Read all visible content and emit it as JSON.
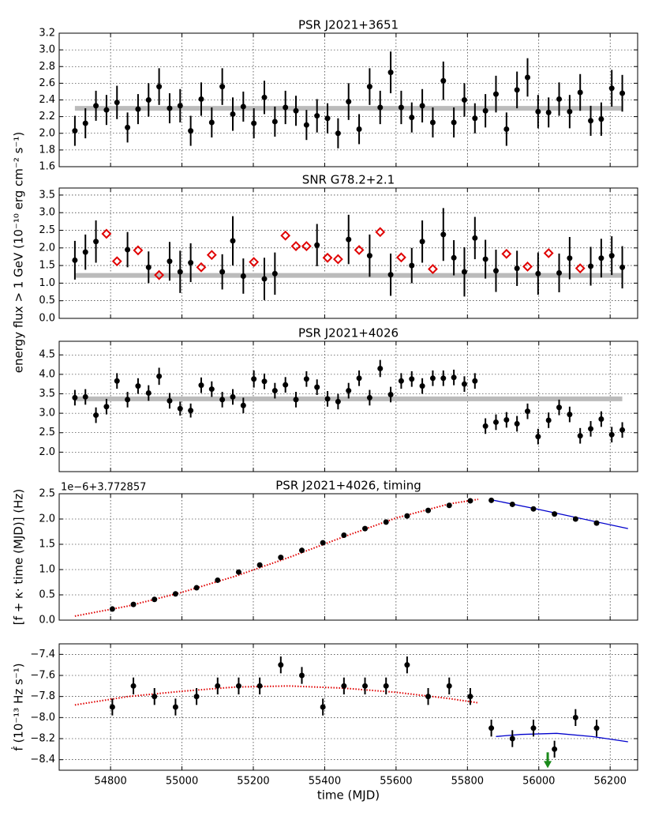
{
  "chart_data": [
    {
      "type": "errorbar",
      "title": "PSR J2021+3651",
      "xlim": [
        54656,
        56277
      ],
      "xticks": [
        54800,
        55000,
        55200,
        55400,
        55600,
        55800,
        56000,
        56200
      ],
      "ylim": [
        1.6,
        3.2
      ],
      "yticks": [
        1.6,
        1.8,
        {
          "value": 2,
          "label": "2.0"
        },
        2.2,
        2.4,
        2.6,
        2.8,
        {
          "value": 3,
          "label": "3.0"
        },
        3.2
      ],
      "grid": true,
      "series": [
        {
          "type": "band",
          "color": "#bbbbbb",
          "x": [
            54700,
            56234
          ],
          "value": 2.3
        },
        {
          "type": "points",
          "color": "#000000",
          "x": [
            54700,
            54729.5,
            54759,
            54788.5,
            54818,
            54847.5,
            54877,
            54906.5,
            54936,
            54965.5,
            54995,
            55024.5,
            55054,
            55083.5,
            55113,
            55142.5,
            55172,
            55201.5,
            55231,
            55260.5,
            55290,
            55319.5,
            55349,
            55378.5,
            55408,
            55437.5,
            55467,
            55496.5,
            55526,
            55555.5,
            55585,
            55614.5,
            55644,
            55673.5,
            55703,
            55732.5,
            55762,
            55791.5,
            55821,
            55850.5,
            55880,
            55909.5,
            55939,
            55968.5,
            55998,
            56027.5,
            56057,
            56086.5,
            56116,
            56145.5,
            56175,
            56204.5,
            56234
          ],
          "values": [
            2.03,
            2.12,
            2.33,
            2.28,
            2.37,
            2.07,
            2.29,
            2.4,
            2.56,
            2.3,
            2.33,
            2.03,
            2.41,
            2.13,
            2.56,
            2.23,
            2.32,
            2.12,
            2.43,
            2.14,
            2.31,
            2.27,
            2.1,
            2.21,
            2.18,
            2.0,
            2.38,
            2.05,
            2.56,
            2.31,
            2.73,
            2.31,
            2.19,
            2.33,
            2.13,
            2.63,
            2.13,
            2.4,
            2.18,
            2.27,
            2.47,
            2.05,
            2.52,
            2.67,
            2.26,
            2.25,
            2.41,
            2.26,
            2.49,
            2.15,
            2.17,
            2.54,
            2.48
          ],
          "errors": [
            0.18,
            0.18,
            0.18,
            0.18,
            0.2,
            0.18,
            0.18,
            0.2,
            0.22,
            0.18,
            0.2,
            0.18,
            0.2,
            0.18,
            0.22,
            0.2,
            0.18,
            0.18,
            0.2,
            0.18,
            0.2,
            0.18,
            0.18,
            0.2,
            0.18,
            0.18,
            0.22,
            0.18,
            0.22,
            0.2,
            0.25,
            0.2,
            0.18,
            0.2,
            0.18,
            0.23,
            0.18,
            0.2,
            0.18,
            0.2,
            0.22,
            0.2,
            0.22,
            0.23,
            0.2,
            0.18,
            0.2,
            0.2,
            0.22,
            0.18,
            0.2,
            0.22,
            0.22
          ]
        }
      ]
    },
    {
      "type": "errorbar",
      "title": "SNR G78.2+2.1",
      "ylabel": "energy flux > 1 GeV (10⁻¹⁰ erg cm⁻² s⁻¹)",
      "xlim": [
        54656,
        56277
      ],
      "xticks": [
        54800,
        55000,
        55200,
        55400,
        55600,
        55800,
        56000,
        56200
      ],
      "ylim": [
        0,
        3.7
      ],
      "yticks": [
        {
          "value": 0,
          "label": "0.0"
        },
        0.5,
        {
          "value": 1,
          "label": "1.0"
        },
        1.5,
        {
          "value": 2,
          "label": "2.0"
        },
        2.5,
        {
          "value": 3,
          "label": "3.0"
        },
        3.5
      ],
      "grid": true,
      "series": [
        {
          "type": "band",
          "color": "#bbbbbb",
          "x": [
            54700,
            56234
          ],
          "value": 1.22
        },
        {
          "type": "points",
          "color": "#000000",
          "x": [
            54700,
            54729.5,
            54759,
            54847.5,
            54906.5,
            54965.5,
            54995,
            55024.5,
            55113,
            55142.5,
            55172,
            55231,
            55260.5,
            55378.5,
            55467,
            55526,
            55585,
            55644,
            55673.5,
            55732.5,
            55762,
            55791.5,
            55821,
            55850.5,
            55880,
            55939,
            55998,
            56057,
            56086.5,
            56145.5,
            56175,
            56204.5,
            56234
          ],
          "values": [
            1.65,
            1.88,
            2.18,
            1.95,
            1.45,
            1.62,
            1.32,
            1.58,
            1.32,
            2.2,
            1.2,
            1.12,
            1.27,
            2.08,
            2.24,
            1.78,
            1.24,
            1.5,
            2.18,
            2.38,
            1.72,
            1.32,
            2.28,
            1.68,
            1.35,
            1.42,
            1.27,
            1.29,
            1.71,
            1.48,
            1.71,
            1.78,
            1.45
          ],
          "errors": [
            0.55,
            0.5,
            0.6,
            0.5,
            0.45,
            0.55,
            0.6,
            0.55,
            0.5,
            0.7,
            0.5,
            0.6,
            0.6,
            0.6,
            0.7,
            0.6,
            0.6,
            0.5,
            0.6,
            0.75,
            0.5,
            0.7,
            0.6,
            0.55,
            0.6,
            0.5,
            0.6,
            0.55,
            0.6,
            0.55,
            0.55,
            0.55,
            0.6
          ]
        },
        {
          "type": "diamonds",
          "color": "#e00000",
          "x": [
            54788.5,
            54818,
            54877,
            54936,
            55054,
            55083.5,
            55201.5,
            55290,
            55319.5,
            55349,
            55408,
            55437.5,
            55496.5,
            55555.5,
            55614.5,
            55703,
            55909.5,
            55968.5,
            56027.5,
            56116
          ],
          "values": [
            2.4,
            1.62,
            1.93,
            1.23,
            1.45,
            1.8,
            1.6,
            2.35,
            2.05,
            2.05,
            1.72,
            1.68,
            1.94,
            2.45,
            1.73,
            1.4,
            1.83,
            1.47,
            1.85,
            1.42
          ]
        }
      ]
    },
    {
      "type": "errorbar",
      "title": "PSR J2021+4026",
      "xlim": [
        54656,
        56277
      ],
      "xticks": [
        54800,
        55000,
        55200,
        55400,
        55600,
        55800,
        56000,
        56200
      ],
      "ylim": [
        1.5,
        4.85
      ],
      "yticks": [
        {
          "value": 2,
          "label": "2.0"
        },
        2.5,
        {
          "value": 3,
          "label": "3.0"
        },
        3.5,
        {
          "value": 4,
          "label": "4.0"
        },
        4.5
      ],
      "grid": true,
      "series": [
        {
          "type": "band",
          "color": "#bbbbbb",
          "x": [
            54700,
            56234
          ],
          "value": 3.37
        },
        {
          "type": "points",
          "color": "#000000",
          "x": [
            54700,
            54729.5,
            54759,
            54788.5,
            54818,
            54847.5,
            54877,
            54906.5,
            54936,
            54965.5,
            54995,
            55024.5,
            55054,
            55083.5,
            55113,
            55142.5,
            55172,
            55201.5,
            55231,
            55260.5,
            55290,
            55319.5,
            55349,
            55378.5,
            55408,
            55437.5,
            55467,
            55496.5,
            55526,
            55555.5,
            55585,
            55614.5,
            55644,
            55673.5,
            55703,
            55732.5,
            55762,
            55791.5,
            55821,
            55850.5,
            55880,
            55909.5,
            55939,
            55968.5,
            55998,
            56027.5,
            56057,
            56086.5,
            56116,
            56145.5,
            56175,
            56204.5,
            56234
          ],
          "values": [
            3.4,
            3.42,
            2.95,
            3.17,
            3.83,
            3.35,
            3.7,
            3.52,
            3.95,
            3.32,
            3.12,
            3.07,
            3.72,
            3.62,
            3.35,
            3.42,
            3.2,
            3.88,
            3.82,
            3.58,
            3.73,
            3.35,
            3.88,
            3.67,
            3.37,
            3.3,
            3.58,
            3.9,
            3.4,
            4.15,
            3.48,
            3.83,
            3.88,
            3.7,
            3.9,
            3.9,
            3.92,
            3.75,
            3.83,
            2.67,
            2.77,
            2.83,
            2.73,
            3.05,
            2.4,
            2.82,
            3.15,
            2.97,
            2.42,
            2.6,
            2.85,
            2.45,
            2.57
          ],
          "errors": [
            0.2,
            0.2,
            0.2,
            0.2,
            0.2,
            0.2,
            0.2,
            0.2,
            0.22,
            0.2,
            0.18,
            0.18,
            0.2,
            0.2,
            0.2,
            0.2,
            0.2,
            0.22,
            0.2,
            0.2,
            0.2,
            0.2,
            0.2,
            0.2,
            0.2,
            0.2,
            0.2,
            0.2,
            0.2,
            0.22,
            0.2,
            0.2,
            0.2,
            0.2,
            0.2,
            0.2,
            0.2,
            0.2,
            0.2,
            0.2,
            0.2,
            0.2,
            0.2,
            0.2,
            0.2,
            0.2,
            0.2,
            0.2,
            0.2,
            0.2,
            0.2,
            0.2,
            0.2
          ]
        }
      ]
    },
    {
      "type": "errorbar",
      "title": "PSR J2021+4026, timing",
      "ylabel": "[f + κ· time (MJD)] (Hz)",
      "offset": "1e−6+3.772857",
      "xlim": [
        54656,
        56277
      ],
      "xticks": [
        54800,
        55000,
        55200,
        55400,
        55600,
        55800,
        56000,
        56200
      ],
      "ylim": [
        0,
        2.5
      ],
      "yticks": [
        {
          "value": 0,
          "label": "0.0"
        },
        0.5,
        {
          "value": 1,
          "label": "1.0"
        },
        1.5,
        {
          "value": 2,
          "label": "2.0"
        },
        2.5
      ],
      "grid": true,
      "series": [
        {
          "type": "curve",
          "color": "#e00000",
          "style": "dotted",
          "x": [
            54700,
            54850,
            55000,
            55150,
            55300,
            55450,
            55600,
            55750,
            55830
          ],
          "values": [
            0.08,
            0.28,
            0.55,
            0.87,
            1.24,
            1.64,
            2.02,
            2.3,
            2.39
          ]
        },
        {
          "type": "curve",
          "color": "#0000cc",
          "style": "solid",
          "x": [
            55867,
            56000,
            56250
          ],
          "values": [
            2.38,
            2.19,
            1.81
          ]
        },
        {
          "type": "points",
          "color": "#000000",
          "x": [
            54805,
            54864,
            54923,
            54982,
            55041,
            55100,
            55159,
            55218,
            55277,
            55336,
            55395,
            55454,
            55513,
            55572,
            55631,
            55690,
            55749,
            55808,
            55867,
            55926,
            55985,
            56044,
            56103,
            56162
          ],
          "values": [
            0.22,
            0.31,
            0.41,
            0.52,
            0.64,
            0.79,
            0.95,
            1.09,
            1.24,
            1.38,
            1.53,
            1.68,
            1.81,
            1.94,
            2.06,
            2.17,
            2.27,
            2.36,
            2.37,
            2.29,
            2.2,
            2.1,
            2.0,
            1.92
          ]
        }
      ]
    },
    {
      "type": "errorbar",
      "ylabel": "ḟ (10⁻¹³ Hz s⁻¹)",
      "xlabel": "time (MJD)",
      "xlim": [
        54656,
        56277
      ],
      "xticks": [
        54800,
        55000,
        55200,
        55400,
        55600,
        55800,
        56000,
        56200
      ],
      "ylim": [
        -8.5,
        -7.3
      ],
      "yticks": [
        {
          "value": -8.4,
          "label": "−8.4"
        },
        {
          "value": -8.2,
          "label": "−8.2"
        },
        {
          "value": -8,
          "label": "−8.0"
        },
        {
          "value": -7.8,
          "label": "−7.8"
        },
        {
          "value": -7.6,
          "label": "−7.6"
        },
        {
          "value": -7.4,
          "label": "−7.4"
        }
      ],
      "grid": true,
      "series": [
        {
          "type": "curve",
          "color": "#e00000",
          "style": "dotted",
          "x": [
            54700,
            54850,
            55000,
            55150,
            55300,
            55450,
            55600,
            55750,
            55830
          ],
          "values": [
            -7.88,
            -7.8,
            -7.75,
            -7.71,
            -7.7,
            -7.72,
            -7.76,
            -7.82,
            -7.86
          ]
        },
        {
          "type": "curve",
          "color": "#0000cc",
          "style": "solid",
          "x": [
            55880,
            55950,
            56050,
            56150,
            56250
          ],
          "values": [
            -8.18,
            -8.16,
            -8.15,
            -8.18,
            -8.23
          ]
        },
        {
          "type": "points",
          "color": "#000000",
          "x": [
            54805,
            54864,
            54923,
            54982,
            55041,
            55100,
            55159,
            55218,
            55277,
            55336,
            55395,
            55454,
            55513,
            55572,
            55631,
            55690,
            55749,
            55808,
            55867,
            55926,
            55985,
            56044,
            56103,
            56162
          ],
          "values": [
            -7.9,
            -7.7,
            -7.8,
            -7.9,
            -7.8,
            -7.7,
            -7.7,
            -7.7,
            -7.5,
            -7.6,
            -7.9,
            -7.7,
            -7.7,
            -7.7,
            -7.5,
            -7.8,
            -7.7,
            -7.8,
            -8.1,
            -8.2,
            -8.1,
            -8.3,
            -8.0,
            -8.1
          ],
          "errors": [
            0.08,
            0.08,
            0.08,
            0.08,
            0.08,
            0.08,
            0.08,
            0.08,
            0.08,
            0.08,
            0.08,
            0.08,
            0.08,
            0.08,
            0.08,
            0.08,
            0.08,
            0.08,
            0.08,
            0.08,
            0.08,
            0.08,
            0.08,
            0.08
          ]
        },
        {
          "type": "arrow",
          "color": "#1a8a1a",
          "x": 56025,
          "values": [
            -8.33,
            -8.48
          ]
        }
      ]
    }
  ]
}
